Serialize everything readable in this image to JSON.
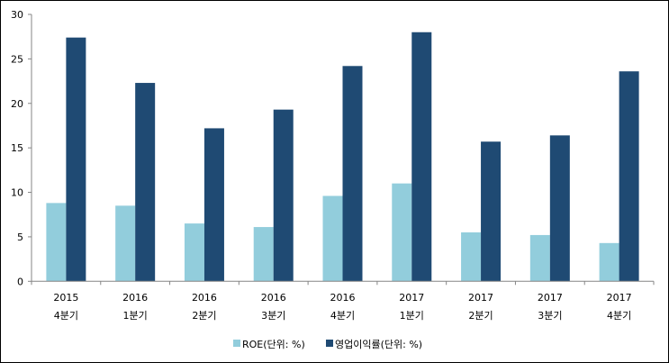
{
  "chart_data": {
    "type": "bar",
    "title": "",
    "xlabel": "",
    "ylabel": "",
    "ylim": [
      0,
      30
    ],
    "yticks": [
      0,
      5,
      10,
      15,
      20,
      25,
      30
    ],
    "grid": false,
    "legend_position": "bottom",
    "categories": [
      [
        "2015",
        "4분기"
      ],
      [
        "2016",
        "1분기"
      ],
      [
        "2016",
        "2분기"
      ],
      [
        "2016",
        "3분기"
      ],
      [
        "2016",
        "4분기"
      ],
      [
        "2017",
        "1분기"
      ],
      [
        "2017",
        "2분기"
      ],
      [
        "2017",
        "3분기"
      ],
      [
        "2017",
        "4분기"
      ]
    ],
    "series": [
      {
        "name": "ROE(단위: %)",
        "color": "#92CDDC",
        "values": [
          8.8,
          8.5,
          6.5,
          6.1,
          9.6,
          11.0,
          5.5,
          5.2,
          4.3
        ]
      },
      {
        "name": "영업이익률(단위: %)",
        "color": "#1F4A73",
        "values": [
          27.4,
          22.3,
          17.2,
          19.3,
          24.2,
          28.0,
          15.7,
          16.4,
          23.6
        ]
      }
    ]
  }
}
